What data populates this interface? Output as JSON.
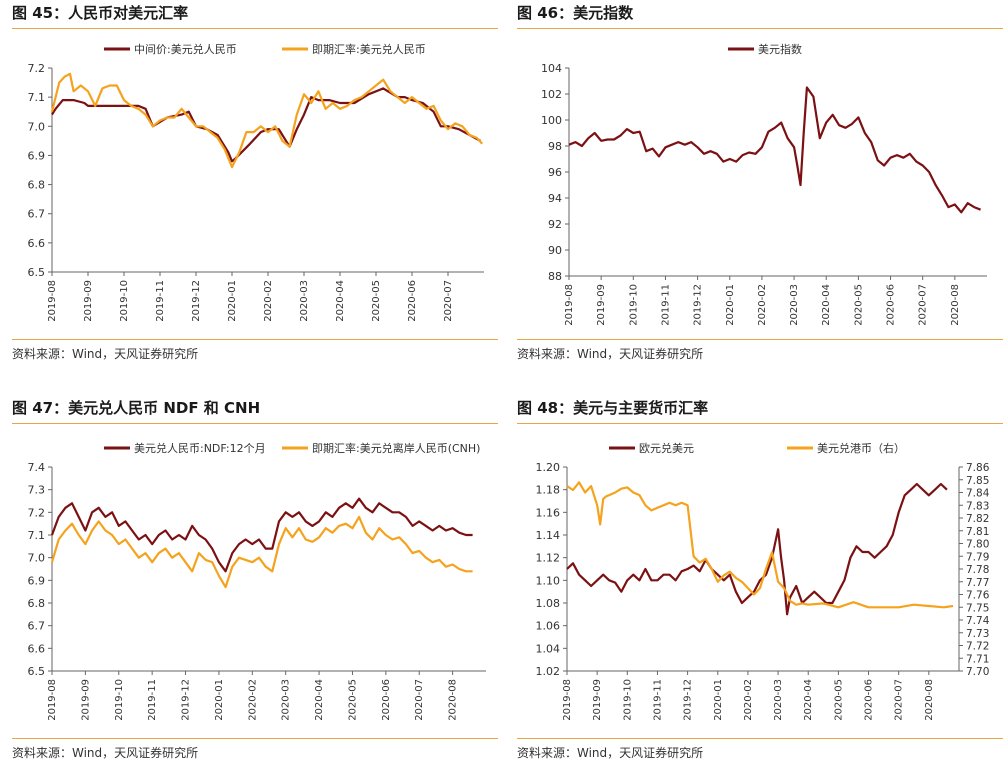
{
  "colors": {
    "maroon": "#7b1113",
    "orange": "#f5a21d",
    "rule": "#e8a64a",
    "axis": "#666666"
  },
  "source_text": "资料来源：Wind，天风证券研究所",
  "chart_data": [
    {
      "type": "line",
      "title": "图 45：人民币对美元汇率",
      "legend": [
        "中间价:美元兑人民币",
        "即期汇率:美元兑人民币"
      ],
      "ylim": [
        6.5,
        7.2
      ],
      "y_ticks": [
        "6.5",
        "6.6",
        "6.7",
        "6.8",
        "6.9",
        "7.0",
        "7.1",
        "7.2"
      ],
      "x_ticks": [
        "2019-08",
        "2019-09",
        "2019-10",
        "2019-11",
        "2019-12",
        "2020-01",
        "2020-02",
        "2020-03",
        "2020-04",
        "2020-05",
        "2020-06",
        "2020-07"
      ],
      "x_range": [
        0,
        12
      ],
      "series": [
        {
          "name": "中间价:美元兑人民币",
          "color": "#7b1113",
          "x": [
            0,
            0.1,
            0.3,
            0.6,
            0.9,
            1.0,
            1.5,
            2.0,
            2.4,
            2.6,
            2.8,
            3.2,
            3.6,
            3.8,
            4.0,
            4.3,
            4.6,
            4.9,
            5.0,
            5.1,
            5.5,
            5.8,
            6.0,
            6.3,
            6.6,
            6.8,
            7.0,
            7.2,
            7.4,
            7.7,
            8.0,
            8.4,
            8.8,
            9.2,
            9.6,
            9.8,
            10.0,
            10.3,
            10.6,
            10.8,
            11.0,
            11.3,
            11.6,
            11.9
          ],
          "values": [
            7.04,
            7.06,
            7.09,
            7.09,
            7.08,
            7.07,
            7.07,
            7.07,
            7.07,
            7.06,
            7.0,
            7.03,
            7.04,
            7.05,
            7.0,
            6.99,
            6.97,
            6.91,
            6.88,
            6.89,
            6.94,
            6.98,
            6.99,
            6.99,
            6.93,
            6.99,
            7.04,
            7.1,
            7.09,
            7.09,
            7.08,
            7.08,
            7.11,
            7.13,
            7.1,
            7.1,
            7.09,
            7.08,
            7.05,
            7.0,
            7.0,
            6.99,
            6.97,
            6.95
          ]
        },
        {
          "name": "即期汇率:美元兑人民币",
          "color": "#f5a21d",
          "x": [
            0,
            0.1,
            0.2,
            0.35,
            0.5,
            0.6,
            0.8,
            1.0,
            1.2,
            1.4,
            1.6,
            1.8,
            2.0,
            2.2,
            2.4,
            2.6,
            2.8,
            3.0,
            3.2,
            3.4,
            3.6,
            3.8,
            4.0,
            4.2,
            4.4,
            4.6,
            4.8,
            5.0,
            5.2,
            5.4,
            5.6,
            5.8,
            6.0,
            6.2,
            6.4,
            6.6,
            6.8,
            7.0,
            7.2,
            7.4,
            7.6,
            7.8,
            8.0,
            8.2,
            8.4,
            8.6,
            8.8,
            9.0,
            9.2,
            9.4,
            9.6,
            9.8,
            10.0,
            10.2,
            10.4,
            10.6,
            10.8,
            11.0,
            11.2,
            11.4,
            11.6,
            11.8,
            11.95
          ],
          "values": [
            7.05,
            7.1,
            7.15,
            7.17,
            7.18,
            7.12,
            7.14,
            7.12,
            7.07,
            7.13,
            7.14,
            7.14,
            7.09,
            7.07,
            7.06,
            7.04,
            7.0,
            7.02,
            7.03,
            7.03,
            7.06,
            7.03,
            7.0,
            7.0,
            6.98,
            6.96,
            6.92,
            6.86,
            6.91,
            6.98,
            6.98,
            7.0,
            6.98,
            7.0,
            6.95,
            6.93,
            7.04,
            7.11,
            7.08,
            7.12,
            7.06,
            7.08,
            7.06,
            7.07,
            7.09,
            7.1,
            7.12,
            7.14,
            7.16,
            7.12,
            7.1,
            7.08,
            7.1,
            7.08,
            7.06,
            7.07,
            7.02,
            6.99,
            7.01,
            7.0,
            6.97,
            6.96,
            6.94
          ]
        }
      ]
    },
    {
      "type": "line",
      "title": "图 46：美元指数",
      "legend": [
        "美元指数"
      ],
      "ylim": [
        88,
        104
      ],
      "y_ticks": [
        "88",
        "90",
        "92",
        "94",
        "96",
        "98",
        "100",
        "102",
        "104"
      ],
      "x_ticks": [
        "2019-08",
        "2019-09",
        "2019-10",
        "2019-11",
        "2019-12",
        "2020-01",
        "2020-02",
        "2020-03",
        "2020-04",
        "2020-05",
        "2020-06",
        "2020-07",
        "2020-08"
      ],
      "x_range": [
        0,
        13
      ],
      "series": [
        {
          "name": "美元指数",
          "color": "#7b1113",
          "x": [
            0,
            0.2,
            0.4,
            0.6,
            0.8,
            1.0,
            1.2,
            1.4,
            1.6,
            1.8,
            2.0,
            2.2,
            2.4,
            2.6,
            2.8,
            3.0,
            3.2,
            3.4,
            3.6,
            3.8,
            4.0,
            4.2,
            4.4,
            4.6,
            4.8,
            5.0,
            5.2,
            5.4,
            5.6,
            5.8,
            6.0,
            6.2,
            6.4,
            6.6,
            6.8,
            7.0,
            7.1,
            7.2,
            7.3,
            7.4,
            7.6,
            7.8,
            8.0,
            8.2,
            8.4,
            8.6,
            8.8,
            9.0,
            9.2,
            9.4,
            9.6,
            9.8,
            10.0,
            10.2,
            10.4,
            10.6,
            10.8,
            11.0,
            11.2,
            11.4,
            11.6,
            11.8,
            12.0,
            12.2,
            12.4,
            12.6,
            12.8
          ],
          "values": [
            98.1,
            98.3,
            98.0,
            98.6,
            99.0,
            98.4,
            98.5,
            98.5,
            98.8,
            99.3,
            99.0,
            99.1,
            97.6,
            97.8,
            97.2,
            97.9,
            98.1,
            98.3,
            98.1,
            98.3,
            97.9,
            97.4,
            97.6,
            97.4,
            96.8,
            97.0,
            96.8,
            97.3,
            97.5,
            97.4,
            97.9,
            99.1,
            99.4,
            99.8,
            98.6,
            97.9,
            96.5,
            95.0,
            99.0,
            102.5,
            101.8,
            98.6,
            99.8,
            100.4,
            99.6,
            99.4,
            99.7,
            100.2,
            99.0,
            98.3,
            96.9,
            96.5,
            97.1,
            97.3,
            97.1,
            97.4,
            96.8,
            96.5,
            96.0,
            95.0,
            94.2,
            93.3,
            93.5,
            92.9,
            93.6,
            93.3,
            93.1
          ]
        }
      ]
    },
    {
      "type": "line",
      "title": "图 47：美元兑人民币 NDF 和 CNH",
      "legend": [
        "美元兑人民币:NDF:12个月",
        "即期汇率:美元兑离岸人民币(CNH)"
      ],
      "ylim": [
        6.5,
        7.4
      ],
      "y_ticks": [
        "6.5",
        "6.6",
        "6.7",
        "6.8",
        "6.9",
        "7.0",
        "7.1",
        "7.2",
        "7.3",
        "7.4"
      ],
      "x_ticks": [
        "2019-08",
        "2019-09",
        "2019-10",
        "2019-11",
        "2019-12",
        "2020-01",
        "2020-02",
        "2020-03",
        "2020-04",
        "2020-05",
        "2020-06",
        "2020-07",
        "2020-08"
      ],
      "x_range": [
        0,
        13
      ],
      "series": [
        {
          "name": "美元兑人民币:NDF:12个月",
          "color": "#7b1113",
          "x": [
            0,
            0.2,
            0.4,
            0.6,
            0.8,
            1.0,
            1.2,
            1.4,
            1.6,
            1.8,
            2.0,
            2.2,
            2.4,
            2.6,
            2.8,
            3.0,
            3.2,
            3.4,
            3.6,
            3.8,
            4.0,
            4.2,
            4.4,
            4.6,
            4.8,
            5.0,
            5.2,
            5.4,
            5.6,
            5.8,
            6.0,
            6.2,
            6.4,
            6.6,
            6.8,
            7.0,
            7.2,
            7.4,
            7.6,
            7.8,
            8.0,
            8.2,
            8.4,
            8.6,
            8.8,
            9.0,
            9.2,
            9.4,
            9.6,
            9.8,
            10.0,
            10.2,
            10.4,
            10.6,
            10.8,
            11.0,
            11.2,
            11.4,
            11.6,
            11.8,
            12.0,
            12.2,
            12.4,
            12.6
          ],
          "values": [
            7.1,
            7.18,
            7.22,
            7.24,
            7.18,
            7.12,
            7.2,
            7.22,
            7.18,
            7.2,
            7.14,
            7.16,
            7.12,
            7.08,
            7.1,
            7.06,
            7.1,
            7.12,
            7.08,
            7.1,
            7.08,
            7.14,
            7.1,
            7.08,
            7.04,
            6.98,
            6.94,
            7.02,
            7.06,
            7.08,
            7.06,
            7.08,
            7.04,
            7.04,
            7.16,
            7.2,
            7.18,
            7.2,
            7.16,
            7.14,
            7.16,
            7.2,
            7.18,
            7.22,
            7.24,
            7.22,
            7.26,
            7.22,
            7.2,
            7.24,
            7.22,
            7.2,
            7.2,
            7.18,
            7.14,
            7.16,
            7.14,
            7.12,
            7.14,
            7.12,
            7.13,
            7.11,
            7.1,
            7.1
          ]
        },
        {
          "name": "即期汇率:美元兑离岸人民币(CNH)",
          "color": "#f5a21d",
          "x": [
            0,
            0.2,
            0.4,
            0.6,
            0.8,
            1.0,
            1.2,
            1.4,
            1.6,
            1.8,
            2.0,
            2.2,
            2.4,
            2.6,
            2.8,
            3.0,
            3.2,
            3.4,
            3.6,
            3.8,
            4.0,
            4.2,
            4.4,
            4.6,
            4.8,
            5.0,
            5.2,
            5.4,
            5.6,
            5.8,
            6.0,
            6.2,
            6.4,
            6.6,
            6.8,
            7.0,
            7.2,
            7.4,
            7.6,
            7.8,
            8.0,
            8.2,
            8.4,
            8.6,
            8.8,
            9.0,
            9.2,
            9.4,
            9.6,
            9.8,
            10.0,
            10.2,
            10.4,
            10.6,
            10.8,
            11.0,
            11.2,
            11.4,
            11.6,
            11.8,
            12.0,
            12.2,
            12.4,
            12.6
          ],
          "values": [
            6.98,
            7.08,
            7.12,
            7.15,
            7.1,
            7.06,
            7.12,
            7.16,
            7.12,
            7.1,
            7.06,
            7.08,
            7.04,
            7.0,
            7.02,
            6.98,
            7.02,
            7.04,
            7.0,
            7.02,
            6.98,
            6.94,
            7.02,
            6.99,
            6.98,
            6.92,
            6.87,
            6.96,
            7.0,
            6.99,
            6.98,
            7.0,
            6.96,
            6.94,
            7.06,
            7.13,
            7.09,
            7.13,
            7.08,
            7.07,
            7.09,
            7.13,
            7.11,
            7.14,
            7.15,
            7.13,
            7.18,
            7.11,
            7.08,
            7.13,
            7.1,
            7.08,
            7.09,
            7.06,
            7.02,
            7.03,
            7.0,
            6.98,
            6.99,
            6.96,
            6.97,
            6.95,
            6.94,
            6.94
          ]
        }
      ]
    },
    {
      "type": "line",
      "title": "图 48：美元与主要货币汇率",
      "legend": [
        "欧元兑美元",
        "美元兑港币（右）"
      ],
      "ylim": [
        1.02,
        1.2
      ],
      "y_ticks": [
        "1.02",
        "1.04",
        "1.06",
        "1.08",
        "1.10",
        "1.12",
        "1.14",
        "1.16",
        "1.18",
        "1.20"
      ],
      "y2lim": [
        7.7,
        7.86
      ],
      "y2_ticks": [
        "7.70",
        "7.71",
        "7.72",
        "7.73",
        "7.74",
        "7.75",
        "7.76",
        "7.77",
        "7.78",
        "7.79",
        "7.80",
        "7.81",
        "7.82",
        "7.83",
        "7.84",
        "7.85",
        "7.86"
      ],
      "x_ticks": [
        "2019-08",
        "2019-09",
        "2019-10",
        "2019-11",
        "2019-12",
        "2020-01",
        "2020-02",
        "2020-03",
        "2020-04",
        "2020-05",
        "2020-06",
        "2020-07",
        "2020-08"
      ],
      "x_range": [
        0,
        13
      ],
      "series": [
        {
          "name": "欧元兑美元",
          "color": "#7b1113",
          "axis": "left",
          "x": [
            0,
            0.2,
            0.4,
            0.6,
            0.8,
            1.0,
            1.2,
            1.4,
            1.6,
            1.8,
            2.0,
            2.2,
            2.4,
            2.6,
            2.8,
            3.0,
            3.2,
            3.4,
            3.6,
            3.8,
            4.0,
            4.2,
            4.4,
            4.6,
            4.8,
            5.0,
            5.2,
            5.4,
            5.6,
            5.8,
            6.0,
            6.2,
            6.4,
            6.6,
            6.8,
            7.0,
            7.1,
            7.2,
            7.3,
            7.4,
            7.6,
            7.8,
            8.0,
            8.2,
            8.4,
            8.6,
            8.8,
            9.0,
            9.2,
            9.4,
            9.6,
            9.8,
            10.0,
            10.2,
            10.4,
            10.6,
            10.8,
            11.0,
            11.2,
            11.4,
            11.6,
            11.8,
            12.0,
            12.2,
            12.4,
            12.6
          ],
          "values": [
            1.11,
            1.115,
            1.105,
            1.1,
            1.095,
            1.1,
            1.105,
            1.1,
            1.098,
            1.09,
            1.1,
            1.105,
            1.1,
            1.11,
            1.1,
            1.1,
            1.105,
            1.105,
            1.1,
            1.108,
            1.11,
            1.113,
            1.108,
            1.118,
            1.11,
            1.105,
            1.1,
            1.105,
            1.09,
            1.08,
            1.085,
            1.09,
            1.1,
            1.105,
            1.12,
            1.145,
            1.12,
            1.1,
            1.07,
            1.085,
            1.095,
            1.08,
            1.085,
            1.09,
            1.085,
            1.08,
            1.08,
            1.09,
            1.1,
            1.12,
            1.13,
            1.125,
            1.125,
            1.12,
            1.125,
            1.13,
            1.14,
            1.16,
            1.175,
            1.18,
            1.185,
            1.18,
            1.175,
            1.18,
            1.185,
            1.18
          ]
        },
        {
          "name": "美元兑港币（右）",
          "color": "#f5a21d",
          "axis": "right",
          "x": [
            0,
            0.2,
            0.4,
            0.6,
            0.8,
            1.0,
            1.1,
            1.2,
            1.3,
            1.4,
            1.6,
            1.8,
            2.0,
            2.2,
            2.4,
            2.6,
            2.8,
            3.0,
            3.2,
            3.4,
            3.6,
            3.8,
            4.0,
            4.2,
            4.4,
            4.6,
            4.8,
            5.0,
            5.2,
            5.4,
            5.6,
            5.8,
            6.0,
            6.2,
            6.4,
            6.6,
            6.8,
            7.0,
            7.2,
            7.4,
            7.6,
            7.8,
            8.0,
            8.5,
            9.0,
            9.5,
            10.0,
            10.5,
            11.0,
            11.5,
            12.0,
            12.5,
            12.8
          ],
          "values": [
            7.845,
            7.842,
            7.848,
            7.84,
            7.845,
            7.83,
            7.815,
            7.835,
            7.837,
            7.838,
            7.84,
            7.843,
            7.844,
            7.84,
            7.838,
            7.83,
            7.826,
            7.828,
            7.83,
            7.832,
            7.83,
            7.832,
            7.83,
            7.79,
            7.785,
            7.788,
            7.78,
            7.77,
            7.775,
            7.778,
            7.773,
            7.77,
            7.765,
            7.76,
            7.765,
            7.78,
            7.793,
            7.77,
            7.765,
            7.755,
            7.752,
            7.753,
            7.752,
            7.753,
            7.75,
            7.754,
            7.75,
            7.75,
            7.75,
            7.752,
            7.751,
            7.75,
            7.751
          ]
        }
      ]
    }
  ]
}
